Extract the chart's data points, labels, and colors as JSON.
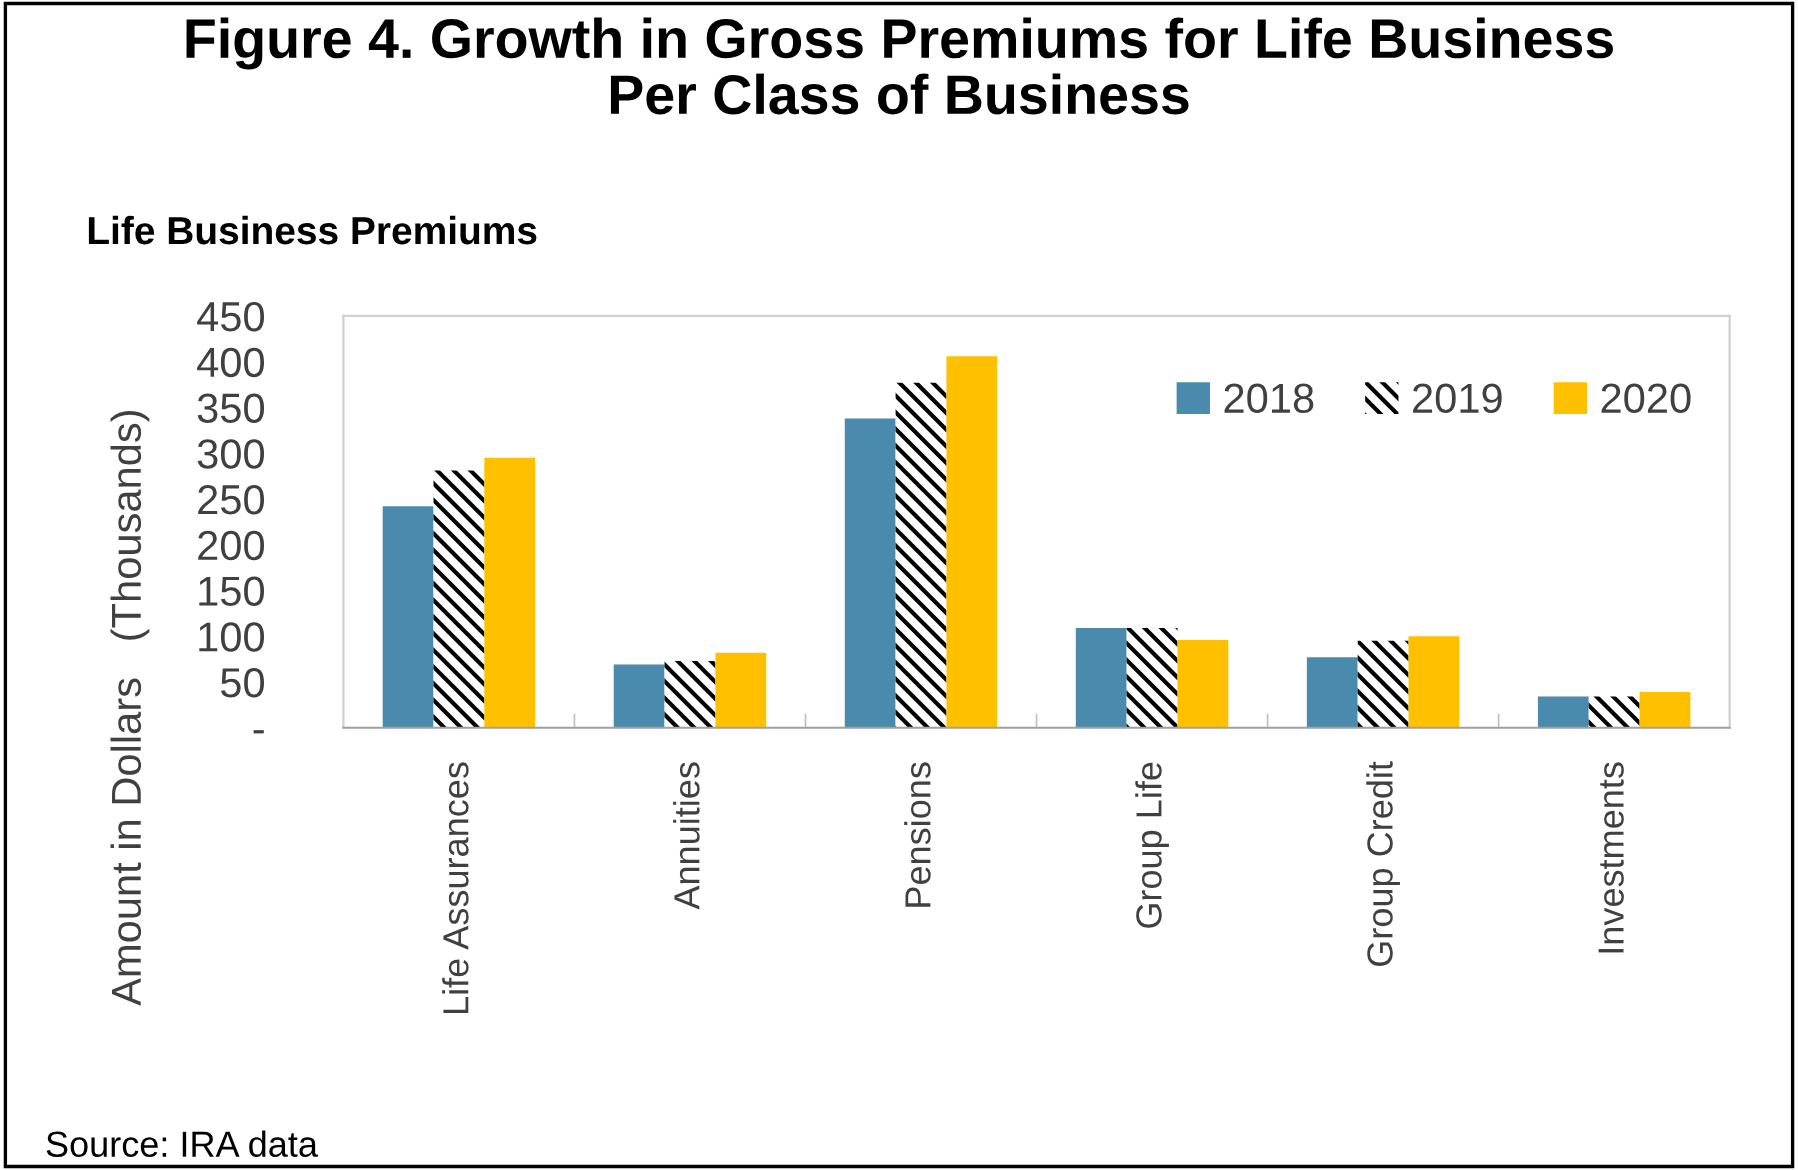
{
  "chart_data": {
    "type": "bar",
    "title": "Figure 4. Growth in Gross Premiums for Life Business\nPer Class of Business",
    "subtitle": "Life Business Premiums",
    "ylabel": "Amount in Dollars   (Thousands)",
    "categories": [
      "Life Assurances",
      "Annuities",
      "Pensions",
      "Group Life",
      "Group Credit",
      "Investments"
    ],
    "series": [
      {
        "name": "2018",
        "color": "#4a8aad",
        "values": [
          242,
          69,
          338,
          109,
          77,
          34
        ]
      },
      {
        "name": "2019",
        "color": "#000000",
        "values": [
          281,
          73,
          377,
          109,
          95,
          34
        ]
      },
      {
        "name": "2020",
        "color": "#ffc000",
        "values": [
          295,
          82,
          406,
          96,
          100,
          39
        ]
      }
    ],
    "ylim": [
      0,
      450
    ],
    "yticks": [
      {
        "value": 0,
        "label": "-"
      },
      50,
      100,
      150,
      200,
      250,
      300,
      350,
      400,
      450
    ],
    "grid": false,
    "legend": "top right",
    "annotations": [
      "Source: IRA data"
    ]
  }
}
